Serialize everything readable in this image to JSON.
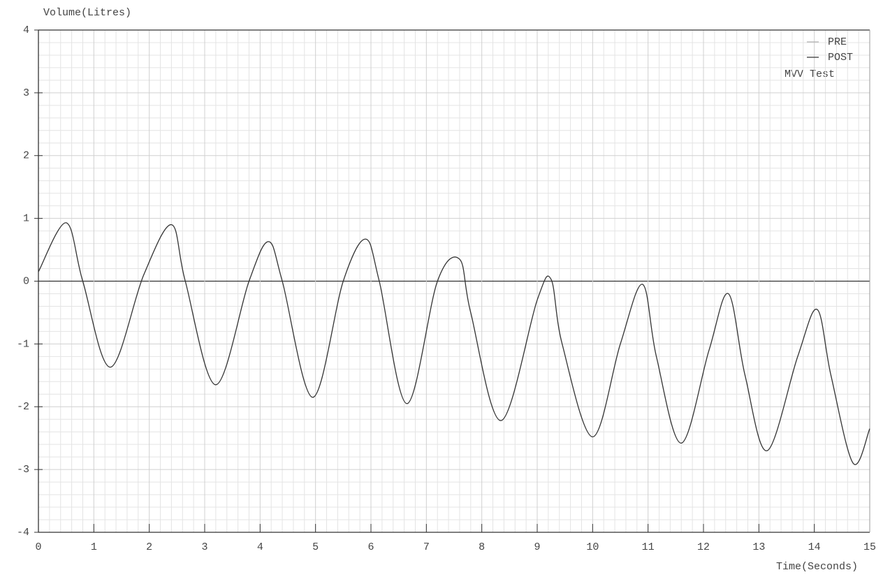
{
  "chart_data": {
    "type": "line",
    "annotation": "MVV Test",
    "x_label": "Time(Seconds)",
    "y_label": "Volume(Litres)",
    "x": [
      0,
      0.5,
      0.8,
      1.3,
      1.9,
      2.4,
      2.65,
      3.2,
      3.8,
      4.15,
      4.4,
      4.95,
      5.5,
      5.9,
      6.15,
      6.65,
      7.2,
      7.6,
      7.8,
      8.35,
      9.0,
      9.25,
      9.45,
      10.0,
      10.5,
      10.9,
      11.15,
      11.6,
      12.1,
      12.45,
      12.75,
      13.15,
      13.7,
      14.05,
      14.3,
      14.7,
      15
    ],
    "series": [
      {
        "name": "PRE",
        "color": "#b0b0b0",
        "values": [
          null,
          null,
          null,
          null,
          null,
          null,
          null,
          null,
          null,
          null,
          null,
          null,
          null,
          null,
          null,
          null,
          null,
          null,
          null,
          null,
          null,
          null,
          null,
          null,
          null,
          null,
          null,
          null,
          null,
          null,
          null,
          null,
          null,
          null,
          null,
          null,
          null
        ]
      },
      {
        "name": "POST",
        "color": "#333333",
        "values": [
          0.15,
          0.93,
          0.0,
          -1.37,
          0.1,
          0.9,
          0.0,
          -1.65,
          0.0,
          0.63,
          0.0,
          -1.85,
          0.0,
          0.67,
          0.0,
          -1.95,
          0.0,
          0.35,
          -0.5,
          -2.22,
          -0.3,
          0.03,
          -1.0,
          -2.48,
          -1.0,
          -0.05,
          -1.2,
          -2.58,
          -1.1,
          -0.2,
          -1.5,
          -2.7,
          -1.2,
          -0.45,
          -1.5,
          -2.9,
          -2.35
        ]
      }
    ],
    "xlim": [
      0,
      15
    ],
    "xticks": [
      0,
      1,
      2,
      3,
      4,
      5,
      6,
      7,
      8,
      9,
      10,
      11,
      12,
      13,
      14,
      15
    ],
    "ylim": [
      -4,
      4
    ],
    "yticks": [
      -4,
      -3,
      -2,
      -1,
      0,
      1,
      2,
      3,
      4
    ],
    "grid": true,
    "minor_grid": true,
    "legend_position": "top-right"
  }
}
